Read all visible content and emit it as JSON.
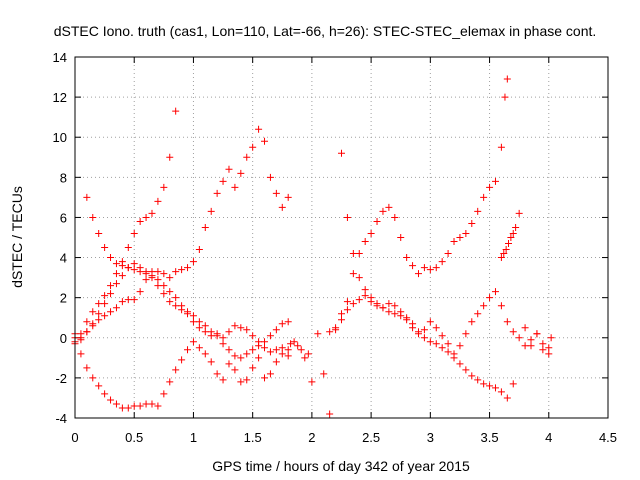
{
  "chart_data": {
    "type": "scatter",
    "title": "dSTEC Iono. truth (cas1, Lon=110, Lat=-66, h=26): STEC-STEC_elemax in phase cont.",
    "xlabel": "GPS time / hours of day 342 of year 2015",
    "ylabel": "dSTEC  / TECUs",
    "xlim": [
      0,
      4.5
    ],
    "ylim": [
      -4,
      14
    ],
    "xticks": [
      0,
      0.5,
      1,
      1.5,
      2,
      2.5,
      3,
      3.5,
      4,
      4.5
    ],
    "xtick_labels": [
      "0",
      "0.5",
      "1",
      "1.5",
      "2",
      "2.5",
      "3",
      "3.5",
      "4",
      "4.5"
    ],
    "yticks": [
      -4,
      -2,
      0,
      2,
      4,
      6,
      8,
      10,
      12,
      14
    ],
    "ytick_labels": [
      "-4",
      "-2",
      "0",
      "2",
      "4",
      "6",
      "8",
      "10",
      "12",
      "14"
    ],
    "grid": true,
    "legend": "none",
    "marker": "plus",
    "color": "#ff0000",
    "series": [
      {
        "x": [
          0.1,
          0.15,
          0.2,
          0.25,
          0.3,
          0.35,
          0.4,
          0.45,
          0.5,
          0.55,
          0.6,
          0.65,
          0.7,
          0.75,
          0.8,
          0.85,
          0.9,
          0.95,
          1.0,
          1.05,
          1.1,
          1.15,
          1.2,
          1.25,
          1.3,
          1.35,
          1.4,
          1.45,
          1.5,
          1.55,
          1.6,
          1.65,
          1.7,
          1.75,
          1.8
        ],
        "y": [
          7.0,
          6.0,
          5.2,
          4.5,
          4.0,
          3.7,
          3.6,
          3.5,
          3.4,
          3.3,
          3.2,
          3.0,
          2.6,
          2.2,
          1.8,
          1.6,
          1.4,
          1.2,
          0.8,
          0.5,
          0.3,
          0.1,
          0.2,
          0.0,
          0.3,
          0.6,
          0.5,
          0.4,
          0.1,
          -0.2,
          -0.5,
          -0.7,
          -0.6,
          -0.5,
          -0.9
        ]
      },
      {
        "x": [
          0.0,
          0.05,
          0.1,
          0.15,
          0.2,
          0.25,
          0.3,
          0.35,
          0.4,
          0.45,
          0.5,
          0.55,
          0.6,
          0.65,
          0.7,
          0.75,
          0.8,
          0.85
        ],
        "y": [
          0.0,
          0.2,
          0.8,
          1.3,
          1.7,
          2.1,
          2.6,
          3.2,
          3.8,
          4.5,
          5.2,
          5.8,
          6.0,
          6.2,
          6.8,
          7.5,
          9.0,
          11.3
        ]
      },
      {
        "x": [
          0.0,
          0.05,
          0.1,
          0.15,
          0.2,
          0.25,
          0.3,
          0.35,
          0.4,
          0.45,
          0.5,
          0.55,
          0.6,
          0.65,
          0.7,
          0.75,
          0.8,
          0.85,
          0.9,
          0.95,
          1.0,
          1.05,
          1.1,
          1.15,
          1.2,
          1.25,
          1.3,
          1.35,
          1.4,
          1.45,
          1.5,
          1.55,
          1.6,
          1.65,
          1.7,
          1.75,
          1.8
        ],
        "y": [
          -0.2,
          -0.8,
          -1.5,
          -2.0,
          -2.4,
          -2.8,
          -3.1,
          -3.3,
          -3.5,
          -3.5,
          -3.4,
          -3.4,
          -3.3,
          -3.3,
          -3.4,
          -2.8,
          -2.2,
          -1.6,
          -1.1,
          -0.6,
          -0.2,
          -0.5,
          -0.8,
          -1.2,
          -1.8,
          -2.1,
          -1.3,
          -1.6,
          -2.2,
          -2.1,
          -1.5,
          -1.0,
          -2.0,
          -1.8,
          -1.2,
          -0.8,
          -0.6
        ]
      },
      {
        "x": [
          0.0,
          0.05,
          0.1,
          0.15,
          0.2,
          0.25,
          0.3,
          0.35,
          0.4,
          0.45,
          0.5,
          0.55,
          0.6,
          0.65,
          0.7,
          0.75,
          0.8,
          0.85,
          0.9,
          0.95,
          1.0,
          1.05,
          1.1,
          1.15,
          1.2,
          1.25,
          1.3,
          1.35,
          1.4,
          1.45,
          1.5,
          1.55,
          1.6,
          1.65,
          1.7,
          1.75,
          1.8
        ],
        "y": [
          0.2,
          0.0,
          0.3,
          0.6,
          0.9,
          1.1,
          1.3,
          1.5,
          1.8,
          1.9,
          1.9,
          2.3,
          2.9,
          3.3,
          3.3,
          3.2,
          3.0,
          3.3,
          3.4,
          3.5,
          3.8,
          4.4,
          5.5,
          6.3,
          7.2,
          7.8,
          8.4,
          7.5,
          8.2,
          9.0,
          9.5,
          10.4,
          9.8,
          8.0,
          7.2,
          6.5,
          7.0
        ]
      },
      {
        "x": [
          0.0,
          0.05,
          0.1,
          0.15,
          0.2,
          0.25,
          0.3,
          0.35,
          0.4,
          0.45,
          0.5,
          0.55,
          0.6,
          0.65,
          0.7,
          0.75,
          0.8,
          0.85,
          0.9,
          0.95,
          1.0,
          1.05,
          1.1,
          1.15,
          1.2,
          1.25,
          1.3,
          1.35,
          1.4,
          1.45,
          1.5,
          1.55,
          1.6,
          1.65,
          1.7,
          1.75,
          1.8
        ],
        "y": [
          -0.3,
          -0.1,
          0.3,
          0.7,
          1.2,
          1.7,
          2.2,
          2.7,
          3.1,
          3.5,
          3.7,
          3.5,
          3.3,
          3.1,
          2.9,
          2.6,
          2.3,
          2.0,
          1.6,
          1.3,
          1.1,
          0.8,
          0.6,
          0.3,
          0.1,
          -0.3,
          -0.6,
          -0.9,
          -1.0,
          -0.8,
          -0.6,
          -0.4,
          -0.2,
          0.1,
          0.4,
          0.7,
          0.8
        ]
      },
      {
        "x": [
          1.82,
          1.85,
          1.88,
          1.91,
          1.94,
          1.97,
          2.0,
          2.05,
          2.1,
          2.15,
          2.2,
          2.25,
          2.3,
          2.35,
          2.4,
          2.45,
          2.5,
          2.55,
          2.6,
          2.65,
          2.7,
          2.75,
          2.8,
          2.85,
          2.9,
          2.95,
          3.0,
          3.05,
          3.1,
          3.15,
          3.2,
          3.25,
          3.3,
          3.35,
          3.4,
          3.45,
          3.5,
          3.55,
          3.6,
          3.63,
          3.65
        ],
        "y": [
          -0.3,
          -0.2,
          -0.4,
          -0.6,
          -1.0,
          -0.8,
          -2.2,
          0.2,
          -1.8,
          -3.8,
          0.4,
          1.2,
          1.8,
          3.2,
          4.2,
          4.8,
          5.2,
          5.8,
          6.3,
          6.5,
          6.0,
          5.0,
          4.0,
          3.6,
          3.2,
          3.5,
          3.4,
          3.5,
          3.8,
          4.2,
          4.8,
          5.0,
          5.2,
          5.7,
          6.3,
          7.0,
          7.5,
          7.8,
          9.5,
          12.0,
          12.9
        ]
      },
      {
        "x": [
          2.15,
          2.2,
          2.25,
          2.3,
          2.35,
          2.4,
          2.45,
          2.5,
          2.55,
          2.6,
          2.65,
          2.7,
          2.75,
          2.8,
          2.85,
          2.9,
          2.95,
          3.0,
          3.05,
          3.1,
          3.15,
          3.2,
          3.25,
          3.3,
          3.35,
          3.4,
          3.45,
          3.5,
          3.55,
          3.6,
          3.65,
          3.7,
          3.75,
          3.8,
          3.85,
          3.9,
          3.95,
          4.0
        ],
        "y": [
          0.3,
          0.5,
          0.9,
          1.4,
          1.7,
          1.9,
          2.1,
          1.8,
          1.6,
          1.5,
          1.7,
          1.6,
          1.3,
          0.9,
          0.5,
          0.2,
          0.4,
          0.8,
          0.5,
          0.1,
          -0.3,
          -0.8,
          -0.4,
          0.2,
          0.8,
          1.2,
          1.6,
          2.0,
          2.3,
          1.6,
          0.8,
          0.3,
          0.0,
          -0.4,
          -0.1,
          0.2,
          -0.6,
          -0.8
        ]
      },
      {
        "x": [
          2.25,
          2.3,
          2.35,
          2.4,
          2.45,
          2.5,
          2.55,
          2.6,
          2.65,
          2.7,
          2.75,
          2.8,
          2.85,
          2.9,
          2.95,
          3.0,
          3.05,
          3.1,
          3.15,
          3.2,
          3.25,
          3.3,
          3.35,
          3.4,
          3.45,
          3.5,
          3.55,
          3.6,
          3.65,
          3.7
        ],
        "y": [
          9.2,
          6.0,
          4.2,
          3.0,
          2.4,
          2.0,
          1.7,
          1.5,
          1.3,
          1.2,
          1.1,
          1.0,
          0.7,
          0.3,
          0.0,
          -0.2,
          -0.3,
          -0.5,
          -0.7,
          -1.0,
          -1.3,
          -1.6,
          -1.9,
          -2.1,
          -2.3,
          -2.4,
          -2.5,
          -2.7,
          -3.0,
          -2.3
        ]
      },
      {
        "x": [
          3.6,
          3.62,
          3.64,
          3.66,
          3.68,
          3.7,
          3.72,
          3.75,
          3.8,
          3.85,
          3.9,
          3.95,
          4.0,
          4.02
        ],
        "y": [
          4.0,
          4.2,
          4.4,
          4.7,
          5.0,
          5.2,
          5.5,
          6.2,
          0.5,
          -0.4,
          0.2,
          -0.3,
          -0.5,
          0.0
        ]
      }
    ]
  }
}
